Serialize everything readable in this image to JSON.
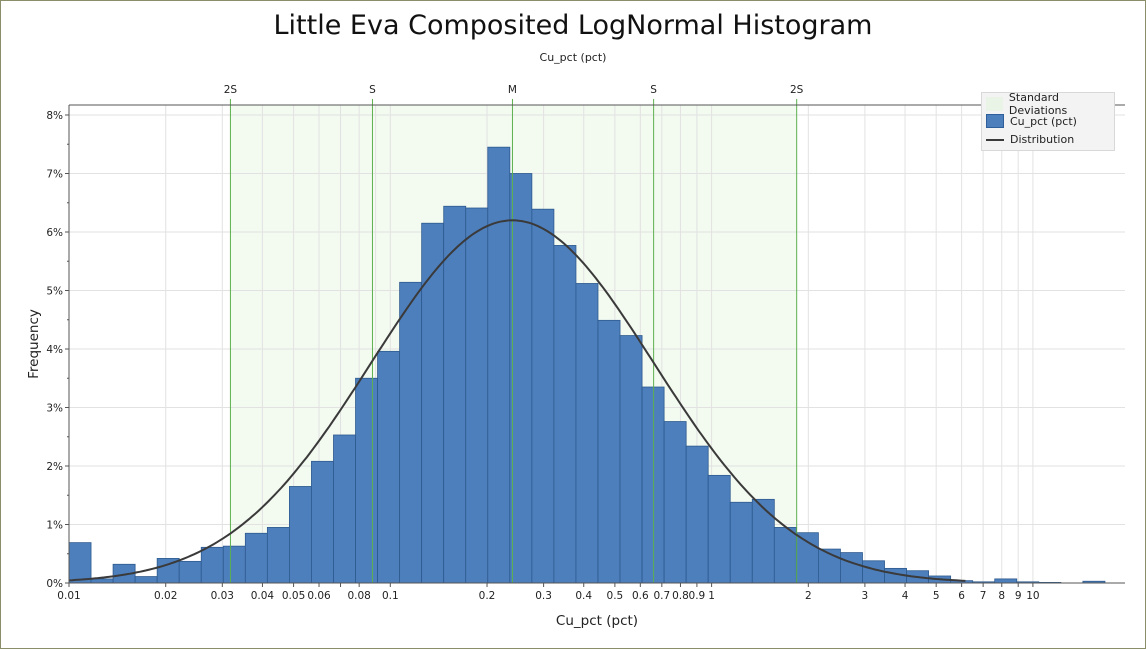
{
  "title": "Little Eva Composited LogNormal Histogram",
  "subtitle": "Cu_pct (pct)",
  "legend": {
    "items": [
      {
        "label": "Standard Deviations",
        "color": "#eef7ea"
      },
      {
        "label": "Cu_pct (pct)",
        "color": "#4e7fbd"
      },
      {
        "label": "Distribution",
        "color": "#3a3a3a"
      }
    ]
  },
  "chart_data": {
    "type": "bar",
    "title": "Little Eva Composited LogNormal Histogram",
    "subtitle": "Cu_pct (pct)",
    "xlabel": "Cu_pct (pct)",
    "ylabel": "Frequency",
    "x_scale": "log",
    "xlim": [
      0.01,
      30
    ],
    "ylim": [
      0,
      8.2
    ],
    "y_unit": "%",
    "grid": true,
    "legend_position": "top-right",
    "x_ticks": [
      "0.01",
      "0.02",
      "0.03",
      "0.04",
      "0.05",
      "0.06",
      "0.08",
      "0.1",
      "0.2",
      "0.3",
      "0.4",
      "0.5",
      "0.6",
      "0.7",
      "0.8",
      "0.9",
      "1",
      "2",
      "3",
      "4",
      "5",
      "6",
      "7",
      "8",
      "9",
      "10"
    ],
    "y_ticks": [
      "0%",
      "1%",
      "2%",
      "3%",
      "4%",
      "5%",
      "6%",
      "7%",
      "8%"
    ],
    "std_markers": [
      {
        "label": "2S",
        "x": 0.0318
      },
      {
        "label": "S",
        "x": 0.088
      },
      {
        "label": "M",
        "x": 0.24
      },
      {
        "label": "S",
        "x": 0.66
      },
      {
        "label": "2S",
        "x": 1.84
      }
    ],
    "series": [
      {
        "name": "Cu_pct (pct)",
        "bin_edges_start_log10": -2.0,
        "bin_width_log10": 0.0686,
        "values": [
          0.69,
          0.07,
          0.32,
          0.11,
          0.42,
          0.37,
          0.61,
          0.63,
          0.85,
          0.95,
          1.65,
          2.08,
          2.53,
          3.5,
          3.96,
          5.14,
          6.15,
          6.44,
          6.41,
          7.45,
          7.0,
          6.39,
          5.77,
          5.12,
          4.49,
          4.23,
          3.35,
          2.76,
          2.34,
          1.84,
          1.38,
          1.43,
          0.95,
          0.86,
          0.58,
          0.52,
          0.38,
          0.25,
          0.21,
          0.12,
          0.04,
          0.02,
          0.07,
          0.02,
          0.01,
          0.0,
          0.03
        ]
      },
      {
        "name": "Distribution",
        "type": "line",
        "peak_x": 0.24,
        "peak_y": 6.2,
        "sigma_log10": 0.44
      }
    ]
  }
}
